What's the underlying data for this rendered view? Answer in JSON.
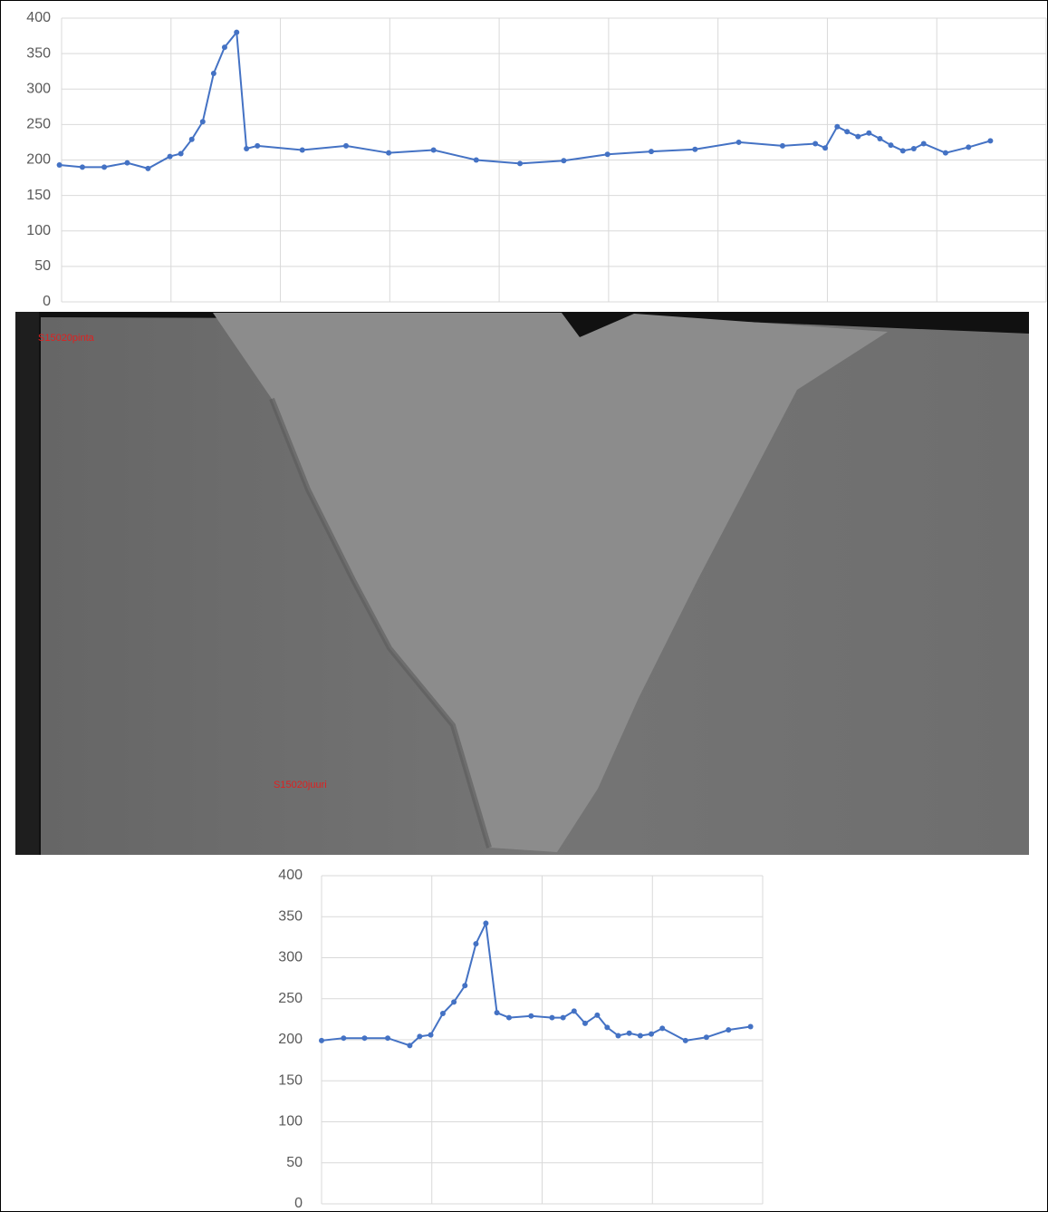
{
  "chart_data": [
    {
      "type": "line",
      "x": [
        -0.02,
        0.19,
        0.39,
        0.6,
        0.79,
        0.99,
        1.09,
        1.19,
        1.29,
        1.39,
        1.49,
        1.6,
        1.69,
        1.79,
        2.2,
        2.6,
        2.99,
        3.4,
        3.79,
        4.19,
        4.59,
        4.99,
        5.39,
        5.79,
        6.19,
        6.59,
        6.89,
        6.98,
        7.09,
        7.18,
        7.28,
        7.38,
        7.48,
        7.58,
        7.69,
        7.79,
        7.88,
        8.08,
        8.29,
        8.49
      ],
      "series": [
        {
          "color": "#4472c4",
          "values": [
            193,
            190,
            190,
            196,
            188,
            205,
            209,
            229,
            254,
            322,
            359,
            380,
            216,
            220,
            214,
            220,
            210,
            214,
            200,
            195,
            199,
            208,
            212,
            215,
            225,
            220,
            223,
            217,
            247,
            240,
            233,
            238,
            230,
            221,
            213,
            216,
            223,
            210,
            218,
            227
          ]
        }
      ],
      "xlim": [
        0,
        9
      ],
      "xticks": [
        1,
        2,
        3,
        4,
        5,
        6,
        7,
        8
      ],
      "ylim": [
        0,
        400
      ],
      "yticks": [
        0,
        50,
        100,
        150,
        200,
        250,
        300,
        350,
        400
      ],
      "grid": true
    },
    {
      "type": "line",
      "x": [
        0,
        0.2,
        0.39,
        0.6,
        0.8,
        0.89,
        0.99,
        1.1,
        1.2,
        1.3,
        1.4,
        1.49,
        1.59,
        1.7,
        1.9,
        2.09,
        2.19,
        2.29,
        2.39,
        2.5,
        2.59,
        2.69,
        2.79,
        2.89,
        2.99,
        3.09,
        3.3,
        3.49,
        3.69,
        3.89
      ],
      "series": [
        {
          "color": "#4472c4",
          "values": [
            199,
            202,
            202,
            202,
            193,
            204,
            206,
            232,
            246,
            266,
            317,
            342,
            233,
            227,
            229,
            227,
            227,
            235,
            220,
            230,
            215,
            205,
            208,
            205,
            207,
            214,
            199,
            203,
            212,
            216
          ]
        }
      ],
      "xlim": [
        0,
        4
      ],
      "xticks": [
        1,
        2,
        3
      ],
      "ylim": [
        0,
        400
      ],
      "yticks": [
        0,
        50,
        100,
        150,
        200,
        250,
        300,
        350,
        400
      ],
      "grid": true
    }
  ],
  "image_labels": [
    "S15020pinta",
    "S15020juuri"
  ]
}
